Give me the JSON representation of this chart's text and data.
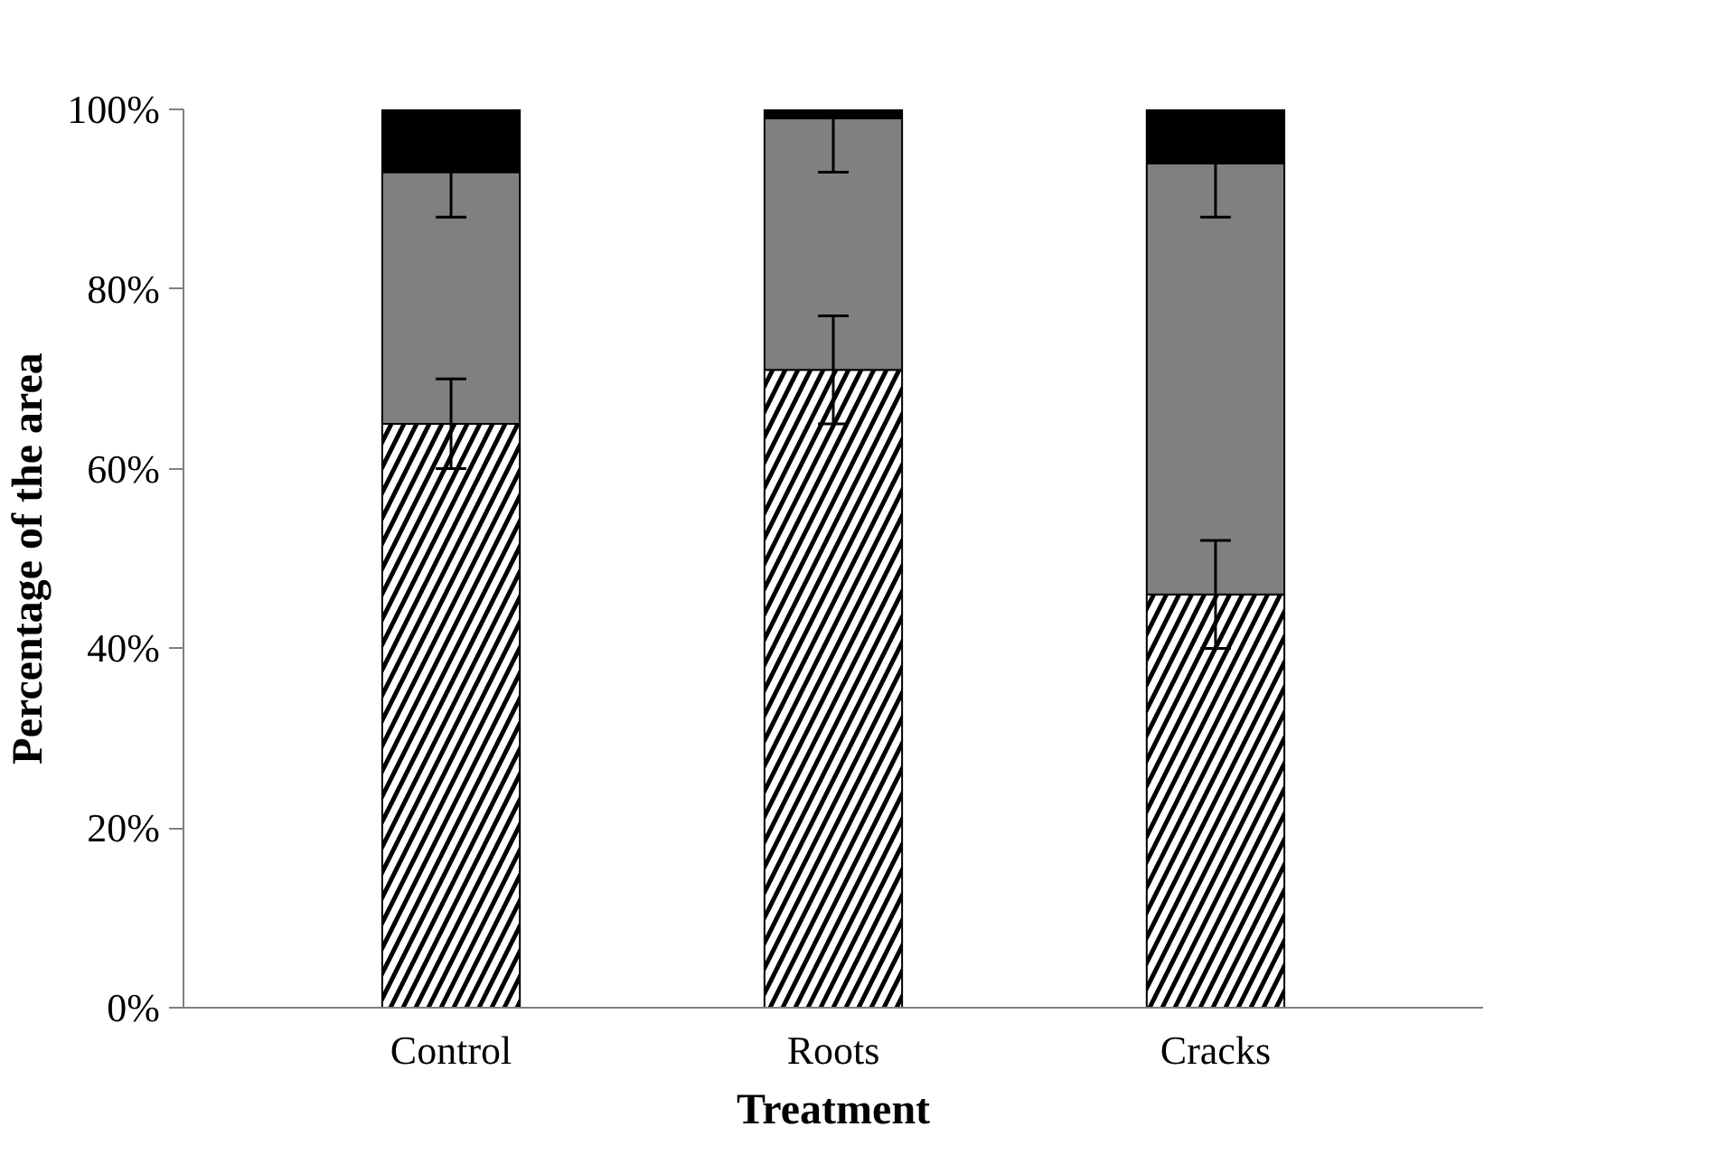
{
  "chart_data": {
    "type": "bar",
    "stacked": true,
    "xlabel": "Treatment",
    "ylabel": "Percentage of the area",
    "categories": [
      "Control",
      "Roots",
      "Cracks"
    ],
    "series": [
      {
        "color": "#ffffff",
        "values": [
          65,
          71,
          46
        ],
        "errors": [
          5,
          6,
          6
        ]
      },
      {
        "color": "#808080",
        "values": [
          28,
          28,
          48
        ],
        "errors": [
          5,
          6,
          6
        ]
      },
      {
        "color": "#000000",
        "values": [
          7,
          1,
          6
        ]
      }
    ],
    "ylim": [
      0,
      100
    ],
    "yticks": [
      {
        "value": 0,
        "label": "0%"
      },
      {
        "value": 20,
        "label": "20%"
      },
      {
        "value": 40,
        "label": "40%"
      },
      {
        "value": 60,
        "label": "60%"
      },
      {
        "value": 80,
        "label": "80%"
      },
      {
        "value": 100,
        "label": "100%"
      }
    ],
    "grid": false
  }
}
